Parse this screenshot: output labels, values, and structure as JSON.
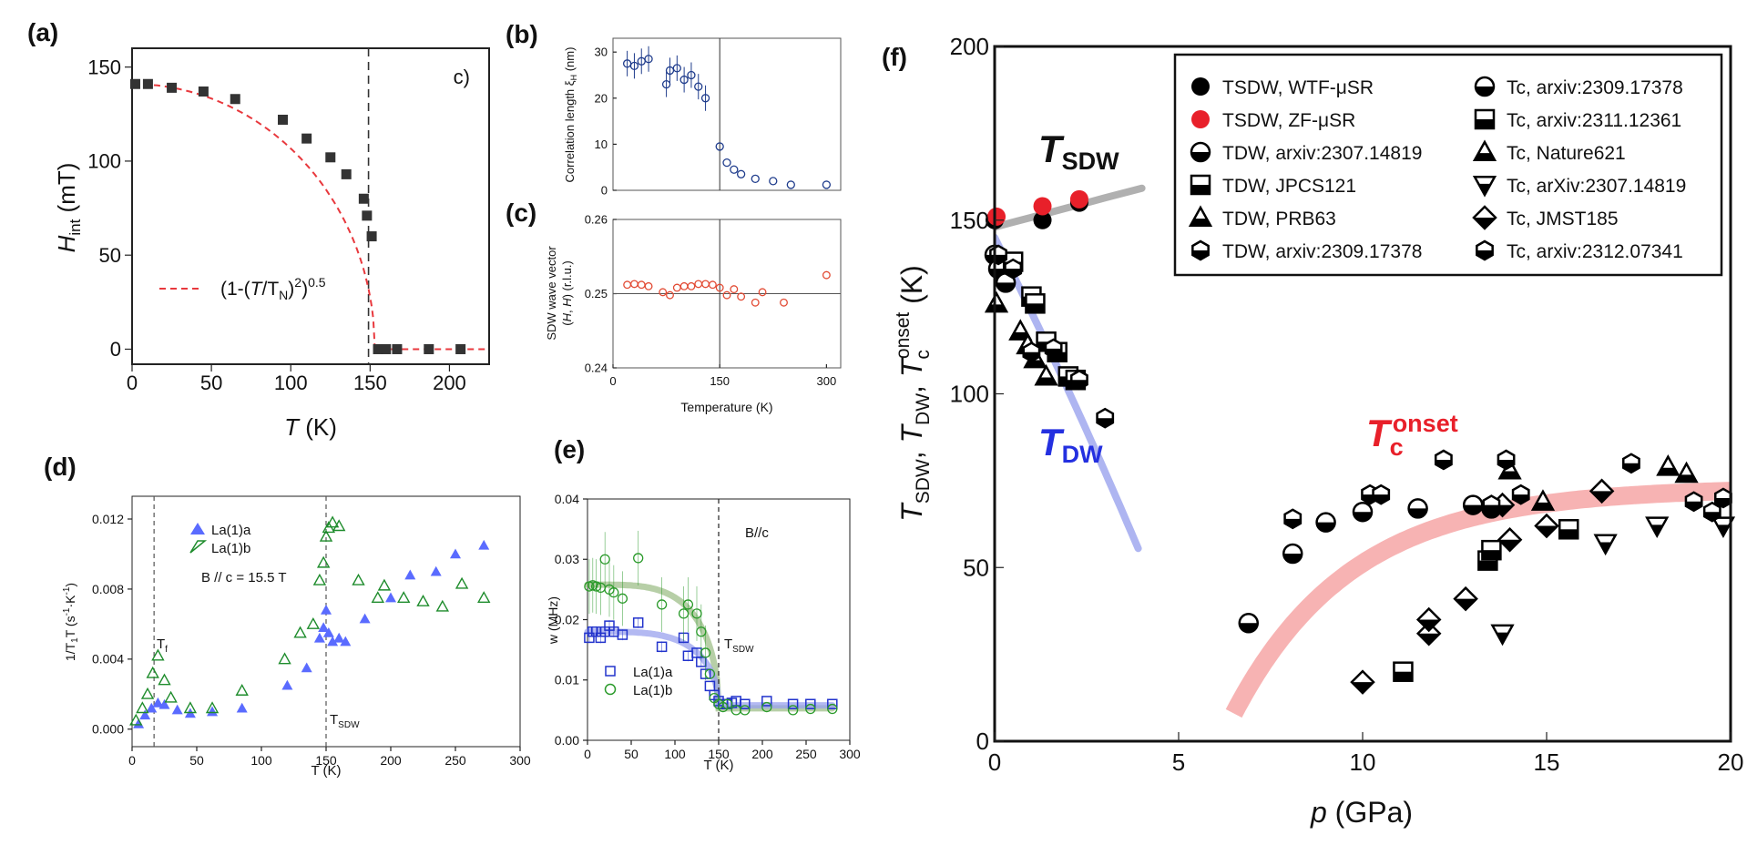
{
  "panels": [
    {
      "id": "a",
      "label": "(a)",
      "chart_data": {
        "type": "scatter",
        "xlabel": "T (K)",
        "ylabel": "H_int (mT)",
        "xlim": [
          0,
          225
        ],
        "ylim": [
          -8,
          160
        ],
        "xticks": [
          "0",
          "50",
          "100",
          "150",
          "200"
        ],
        "yticks": [
          "0",
          "50",
          "100",
          "150"
        ],
        "series": [
          {
            "name": "",
            "color": "#333333",
            "marker": "square",
            "x": [
              2,
              10,
              25,
              45,
              65,
              95,
              110,
              125,
              135,
              146,
              148,
              151,
              155,
              160,
              167,
              187,
              207
            ],
            "y": [
              141,
              141,
              139,
              137,
              133,
              122,
              112,
              102,
              93,
              80,
              71,
              60,
              0,
              0,
              0,
              0,
              0
            ]
          }
        ],
        "fit_label": "(1-(T/T_N)^2)^0.5",
        "fit_color": "#e8383d",
        "vline_x": 149,
        "corner_text": "c)"
      }
    },
    {
      "id": "b",
      "label": "(b)",
      "chart_data": {
        "type": "scatter",
        "xlabel": "",
        "ylabel": "Correlation length ξH (nm)",
        "xlim": [
          0,
          320
        ],
        "ylim": [
          0,
          33
        ],
        "yticks": [
          "0",
          "10",
          "20",
          "30"
        ],
        "series": [
          {
            "name": "",
            "color": "#1f3c8c",
            "marker": "circle",
            "x": [
              20,
              30,
              40,
              50,
              75,
              80,
              90,
              100,
              110,
              120,
              130,
              150,
              160,
              170,
              180,
              200,
              225,
              250,
              300
            ],
            "y": [
              27.5,
              27.0,
              28.0,
              28.5,
              23.0,
              26.0,
              26.5,
              24.0,
              25.0,
              22.5,
              20.0,
              9.5,
              6.0,
              4.5,
              3.5,
              2.5,
              2.0,
              1.2,
              1.2
            ]
          }
        ],
        "vline_x": 150
      }
    },
    {
      "id": "c",
      "label": "(c)",
      "chart_data": {
        "type": "scatter",
        "xlabel": "Temperature (K)",
        "ylabel": "SDW wave vector (H, H) (r.l.u.)",
        "xlim": [
          0,
          320
        ],
        "ylim": [
          0.24,
          0.26
        ],
        "xticks": [
          "0",
          "150",
          "300"
        ],
        "yticks": [
          "0.24",
          "0.25",
          "0.26"
        ],
        "series": [
          {
            "name": "",
            "color": "#e24a33",
            "marker": "circle",
            "x": [
              20,
              30,
              40,
              50,
              70,
              80,
              90,
              100,
              110,
              120,
              130,
              140,
              150,
              160,
              170,
              180,
              200,
              210,
              240,
              300
            ],
            "y": [
              0.2512,
              0.2513,
              0.2512,
              0.251,
              0.2502,
              0.2498,
              0.2508,
              0.251,
              0.251,
              0.2513,
              0.2513,
              0.2512,
              0.2508,
              0.2498,
              0.2506,
              0.2496,
              0.2488,
              0.2502,
              0.2488,
              0.2525
            ]
          }
        ],
        "hline_y": 0.25,
        "vline_x": 150
      }
    },
    {
      "id": "d",
      "label": "(d)",
      "chart_data": {
        "type": "scatter",
        "xlabel": "T (K)",
        "ylabel": "1/T1T (s-1·K-1)",
        "xlim": [
          0,
          300
        ],
        "ylim": [
          -0.001,
          0.0133
        ],
        "xticks": [
          "0",
          "50",
          "100",
          "150",
          "200",
          "250",
          "300"
        ],
        "yticks": [
          "0.000",
          "0.004",
          "0.008",
          "0.012"
        ],
        "series": [
          {
            "name": "La(1)a",
            "color": "#5a6bff",
            "marker": "triangle-filled",
            "x": [
              5,
              10,
              15,
              20,
              25,
              35,
              45,
              62,
              85,
              120,
              135,
              145,
              148,
              150,
              152,
              155,
              160,
              165,
              180,
              200,
              215,
              235,
              250,
              272
            ],
            "y": [
              0.0003,
              0.0008,
              0.0012,
              0.0015,
              0.0014,
              0.0011,
              0.0009,
              0.001,
              0.0012,
              0.0025,
              0.0035,
              0.0052,
              0.0058,
              0.0068,
              0.0055,
              0.005,
              0.0052,
              0.005,
              0.0063,
              0.0075,
              0.0088,
              0.009,
              0.01,
              0.0105
            ]
          },
          {
            "name": "La(1)b",
            "color": "#1e8c2c",
            "marker": "triangle-open",
            "x": [
              3,
              8,
              12,
              16,
              20,
              25,
              30,
              45,
              62,
              85,
              118,
              130,
              140,
              145,
              148,
              150,
              152,
              155,
              160,
              175,
              190,
              195,
              210,
              225,
              240,
              255,
              272
            ],
            "y": [
              0.0005,
              0.0012,
              0.002,
              0.0032,
              0.0042,
              0.0028,
              0.0018,
              0.0012,
              0.0012,
              0.0022,
              0.004,
              0.0055,
              0.006,
              0.0085,
              0.0095,
              0.011,
              0.0115,
              0.0118,
              0.0116,
              0.0085,
              0.0075,
              0.0082,
              0.0075,
              0.0073,
              0.007,
              0.0083,
              0.0075
            ]
          }
        ],
        "annotations": [
          "B // c = 15.5 T",
          "Tf",
          "TSDW"
        ],
        "vlines_x": [
          17,
          150
        ]
      }
    },
    {
      "id": "e",
      "label": "(e)",
      "chart_data": {
        "type": "scatter",
        "xlabel": "T (K)",
        "ylabel": "w (MHz)",
        "xlim": [
          0,
          300
        ],
        "ylim": [
          0,
          0.04
        ],
        "xticks": [
          "0",
          "50",
          "100",
          "150",
          "200",
          "250",
          "300"
        ],
        "yticks": [
          "0.00",
          "0.01",
          "0.02",
          "0.03",
          "0.04"
        ],
        "series": [
          {
            "name": "La(1)a",
            "color": "#2233cc",
            "marker": "square-open",
            "x": [
              2,
              6,
              10,
              15,
              20,
              25,
              30,
              40,
              58,
              85,
              110,
              115,
              125,
              130,
              135,
              140,
              145,
              150,
              155,
              160,
              165,
              170,
              180,
              205,
              235,
              255,
              280
            ],
            "y": [
              0.017,
              0.018,
              0.018,
              0.017,
              0.018,
              0.019,
              0.018,
              0.0175,
              0.0195,
              0.0155,
              0.017,
              0.014,
              0.0145,
              0.013,
              0.011,
              0.009,
              0.0075,
              0.0065,
              0.006,
              0.006,
              0.0062,
              0.0065,
              0.006,
              0.0065,
              0.006,
              0.006,
              0.006
            ]
          },
          {
            "name": "La(1)b",
            "color": "#2a9a2a",
            "marker": "circle-open",
            "x": [
              2,
              6,
              10,
              15,
              20,
              25,
              30,
              40,
              58,
              85,
              110,
              115,
              125,
              130,
              135,
              140,
              145,
              150,
              155,
              160,
              170,
              180,
              205,
              235,
              255,
              280
            ],
            "y": [
              0.0255,
              0.0257,
              0.0255,
              0.0253,
              0.03,
              0.025,
              0.0245,
              0.0235,
              0.0302,
              0.0225,
              0.021,
              0.0225,
              0.021,
              0.018,
              0.0145,
              0.011,
              0.007,
              0.006,
              0.0055,
              0.006,
              0.005,
              0.005,
              0.0055,
              0.005,
              0.0052,
              0.0052
            ]
          }
        ],
        "annotations": [
          "B//c",
          "TSDW"
        ],
        "vline_x": 150
      }
    },
    {
      "id": "f",
      "label": "(f)",
      "chart_data": {
        "type": "scatter",
        "xlabel": "p (GPa)",
        "ylabel": "TSDW, TDW, Tc onset (K)",
        "xlim": [
          0,
          20
        ],
        "ylim": [
          0,
          200
        ],
        "xticks": [
          "0",
          "5",
          "10",
          "15",
          "20"
        ],
        "yticks": [
          "0",
          "50",
          "100",
          "150",
          "200"
        ],
        "band_labels": [
          "TSDW",
          "TDW",
          "Tc onset"
        ],
        "legend_position": "top-right",
        "series": [
          {
            "name": "TSDW, WTF-μSR",
            "marker": "circle-black",
            "x": [
              0,
              1.3,
              2.3
            ],
            "y": [
              150,
              150,
              155
            ]
          },
          {
            "name": "TSDW, ZF-μSR",
            "marker": "circle-red",
            "x": [
              0.05,
              1.3,
              2.3
            ],
            "y": [
              151,
              154,
              156
            ]
          },
          {
            "name": "TDW, arxiv:2307.14819",
            "marker": "circle-half",
            "x": [
              0,
              0.1,
              0.3
            ],
            "y": [
              140,
              136,
              132
            ]
          },
          {
            "name": "TDW, JPCS121",
            "marker": "square-half",
            "x": [
              0.5,
              1.0,
              1.1,
              1.4,
              1.7,
              2.0,
              2.2
            ],
            "y": [
              138,
              128,
              126,
              115,
              112,
              105,
              104
            ]
          },
          {
            "name": "TDW, PRB63",
            "marker": "triangle-half",
            "x": [
              0.05,
              0.7,
              0.9,
              1.1,
              1.4
            ],
            "y": [
              126,
              118,
              114,
              110,
              105
            ]
          },
          {
            "name": "TDW, arxiv:2309.17378",
            "marker": "hexagon-half",
            "x": [
              0.1,
              0.5,
              1.0,
              1.6,
              2.3,
              3.0
            ],
            "y": [
              140,
              136,
              112,
              113,
              104,
              93
            ]
          },
          {
            "name": "Tc, arxiv:2309.17378",
            "marker": "circle-half",
            "x": [
              6.9,
              8.1,
              9.0,
              10.0,
              11.5,
              13.0,
              13.5
            ],
            "y": [
              34,
              54,
              63,
              66,
              67,
              68,
              67
            ]
          },
          {
            "name": "Tc, arxiv:2311.12361",
            "marker": "square-half",
            "x": [
              11.1,
              13.4,
              13.5,
              15.6
            ],
            "y": [
              20,
              52,
              55,
              61
            ]
          },
          {
            "name": "Tc, Nature621",
            "marker": "triangle-half",
            "x": [
              14.0,
              14.9,
              18.3,
              18.8
            ],
            "y": [
              78,
              69,
              79,
              77
            ]
          },
          {
            "name": "Tc, arXiv:2307.14819",
            "marker": "triangle-down-half",
            "x": [
              13.8,
              16.6,
              18.0,
              19.8
            ],
            "y": [
              31,
              57,
              62,
              62
            ]
          },
          {
            "name": "Tc, JMST185",
            "marker": "diamond-half",
            "x": [
              10.0,
              11.8,
              11.8,
              12.8,
              13.8,
              14.0,
              15.0,
              16.5
            ],
            "y": [
              17,
              31,
              35,
              41,
              68,
              58,
              62,
              72
            ]
          },
          {
            "name": "Tc, arxiv:2312.07341",
            "marker": "hexagon-half",
            "x": [
              8.1,
              10.2,
              10.5,
              12.2,
              13.5,
              13.9,
              14.3,
              17.3,
              19.0,
              19.5,
              19.8
            ],
            "y": [
              64,
              71,
              71,
              81,
              68,
              81,
              71,
              80,
              69,
              66,
              70
            ]
          }
        ]
      }
    }
  ]
}
